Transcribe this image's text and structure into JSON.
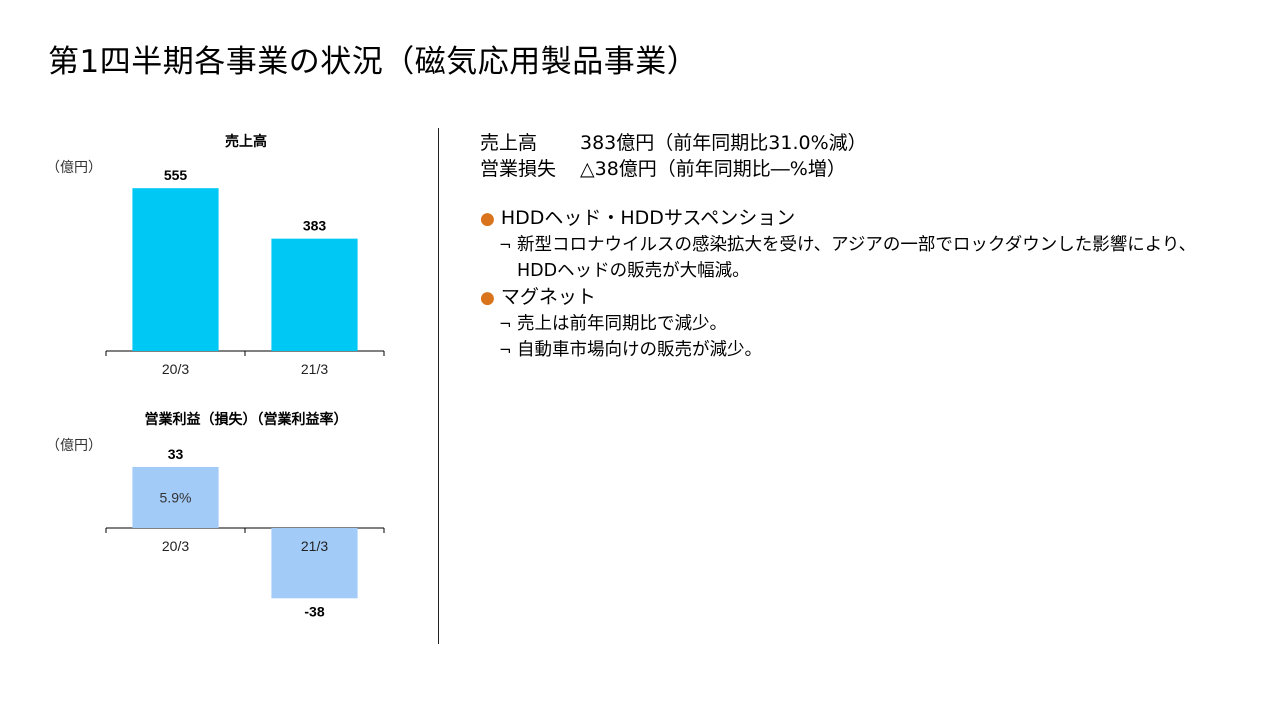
{
  "title": "第1四半期各事業の状況（磁気応用製品事業）",
  "chart_data": [
    {
      "type": "bar",
      "title": "売上高",
      "unit": "（億円）",
      "categories": [
        "20/3",
        "21/3"
      ],
      "values": [
        555,
        383
      ],
      "ylim": [
        0,
        600
      ],
      "color": "#00c8f5",
      "legend": "none",
      "grid": false
    },
    {
      "type": "bar",
      "title": "営業利益（損失）（営業利益率）",
      "unit": "（億円）",
      "categories": [
        "20/3",
        "21/3"
      ],
      "values": [
        33,
        -38
      ],
      "margin_labels": [
        "5.9%",
        ""
      ],
      "ylim": [
        -40,
        40
      ],
      "color": "#a3cbf8",
      "legend": "none",
      "grid": false
    }
  ],
  "summary": {
    "lines": [
      {
        "label": "売上高",
        "value": "383億円（前年同期比31.0%減）"
      },
      {
        "label": "営業損失",
        "value": "△38億円（前年同期比―%増）"
      }
    ]
  },
  "bullets": [
    {
      "heading": "HDDヘッド・HDDサスペンション",
      "items": [
        "新型コロナウイルスの感染拡大を受け、アジアの一部でロックダウンした影響により、HDDヘッドの販売が大幅減。"
      ]
    },
    {
      "heading": "マグネット",
      "items": [
        "売上は前年同期比で減少。",
        "自動車市場向けの販売が減少。"
      ]
    }
  ],
  "marks": {
    "bullet": "●",
    "sub": "¬"
  },
  "colors": {
    "bullet": "#d9731c"
  }
}
